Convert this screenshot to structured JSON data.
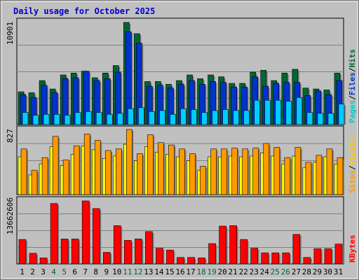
{
  "chart_data": [
    {
      "type": "bar",
      "title": "Daily usage for October 2025",
      "categories": [
        "1",
        "2",
        "3",
        "4",
        "5",
        "6",
        "7",
        "8",
        "9",
        "10",
        "11",
        "12",
        "13",
        "14",
        "15",
        "16",
        "17",
        "18",
        "19",
        "20",
        "21",
        "22",
        "23",
        "24",
        "25",
        "26",
        "27",
        "28",
        "29",
        "30",
        "31"
      ],
      "weekend_days": [
        "4",
        "5",
        "11",
        "12",
        "18",
        "19",
        "25",
        "26"
      ],
      "ylim": [
        0,
        10901
      ],
      "y_tick_labels": [
        "10901"
      ],
      "legend": [
        "Pages",
        "Files",
        "Hits"
      ],
      "legend_separator": "/",
      "series": [
        {
          "name": "Hits",
          "color": "#006633",
          "values": [
            3500,
            3400,
            4700,
            3800,
            5300,
            5500,
            5700,
            5000,
            5500,
            6300,
            10901,
            9700,
            4600,
            4600,
            4300,
            4700,
            5300,
            4900,
            5300,
            5100,
            4400,
            4400,
            5600,
            5800,
            4700,
            5500,
            5900,
            3900,
            3800,
            3700,
            5500
          ]
        },
        {
          "name": "Files",
          "color": "#0033cc",
          "values": [
            3200,
            2900,
            4200,
            3400,
            4900,
            5000,
            5700,
            4700,
            4900,
            5600,
            9900,
            8700,
            4100,
            4200,
            3900,
            4300,
            4700,
            4300,
            4600,
            4500,
            4000,
            4000,
            5100,
            4100,
            4400,
            4500,
            4500,
            3100,
            3600,
            3200,
            4700
          ]
        },
        {
          "name": "Pages",
          "color": "#00ccff",
          "values": [
            1300,
            1000,
            1100,
            1100,
            1000,
            1300,
            1400,
            1300,
            1100,
            1200,
            1700,
            1800,
            1400,
            1500,
            1100,
            1700,
            1600,
            1300,
            1500,
            1600,
            1500,
            1500,
            2600,
            2600,
            2600,
            2500,
            2900,
            1300,
            1200,
            1200,
            2200
          ]
        }
      ]
    },
    {
      "type": "bar",
      "categories": [
        "1",
        "2",
        "3",
        "4",
        "5",
        "6",
        "7",
        "8",
        "9",
        "10",
        "11",
        "12",
        "13",
        "14",
        "15",
        "16",
        "17",
        "18",
        "19",
        "20",
        "21",
        "22",
        "23",
        "24",
        "25",
        "26",
        "27",
        "28",
        "29",
        "30",
        "31"
      ],
      "ylim": [
        0,
        827
      ],
      "y_tick_labels": [
        "827"
      ],
      "legend": [
        "Sites",
        "Visits"
      ],
      "legend_separator": "/",
      "series": [
        {
          "name": "Visits",
          "color": "#ff9900",
          "values": [
            580,
            310,
            470,
            740,
            440,
            620,
            770,
            690,
            560,
            580,
            827,
            520,
            760,
            660,
            630,
            580,
            520,
            360,
            580,
            580,
            590,
            580,
            590,
            650,
            600,
            470,
            600,
            410,
            500,
            580,
            470
          ]
        },
        {
          "name": "Sites",
          "color": "#ffff00",
          "values": [
            480,
            250,
            390,
            610,
            370,
            510,
            620,
            570,
            460,
            490,
            640,
            430,
            610,
            540,
            510,
            480,
            430,
            310,
            480,
            480,
            490,
            480,
            490,
            530,
            490,
            390,
            490,
            340,
            410,
            480,
            390
          ]
        }
      ]
    },
    {
      "type": "bar",
      "categories": [
        "1",
        "2",
        "3",
        "4",
        "5",
        "6",
        "7",
        "8",
        "9",
        "10",
        "11",
        "12",
        "13",
        "14",
        "15",
        "16",
        "17",
        "18",
        "19",
        "20",
        "21",
        "22",
        "23",
        "24",
        "25",
        "26",
        "27",
        "28",
        "29",
        "30",
        "31"
      ],
      "ylim": [
        0,
        13662606
      ],
      "y_tick_labels": [
        "13662606"
      ],
      "legend": [
        "KBytes"
      ],
      "series": [
        {
          "name": "KBytes",
          "color": "#ff0000",
          "values": [
            5300000,
            2300000,
            1300000,
            13100000,
            5400000,
            5400000,
            13662606,
            12000000,
            2500000,
            8300000,
            5100000,
            5400000,
            7000000,
            3400000,
            3000000,
            1400000,
            1400000,
            1300000,
            4400000,
            8200000,
            8300000,
            5300000,
            3400000,
            2400000,
            2400000,
            2400000,
            6400000,
            1400000,
            3300000,
            3300000,
            4300000
          ]
        }
      ]
    }
  ],
  "colors": {
    "frame_bg": "#c0c0c0",
    "plot_bg": "#c0c0c0",
    "grid": "#808080",
    "title_text": "#0000cc",
    "day_text": "#000000",
    "weekend_text": "#006633",
    "legend_hits": "#006633",
    "legend_files": "#0033cc",
    "legend_pages": "#00cccc",
    "legend_visits": "#ffcc00",
    "legend_sites": "#ff9900",
    "legend_kbytes": "#ff0000",
    "legend_sep": "#000000"
  }
}
